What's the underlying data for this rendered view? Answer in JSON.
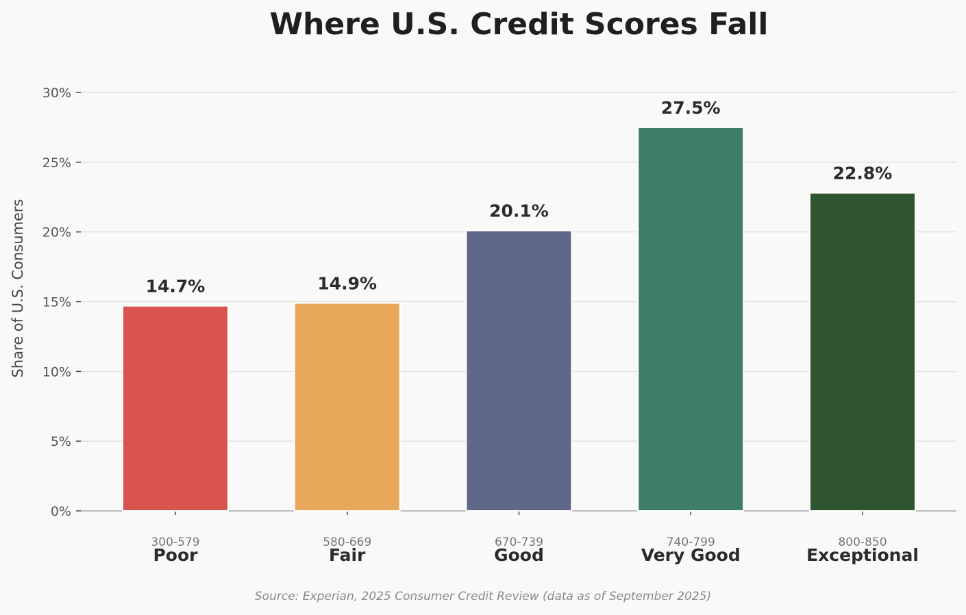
{
  "chart_data": {
    "type": "bar",
    "title": "Where U.S. Credit Scores Fall",
    "xlabel": "",
    "ylabel": "Share of U.S. Consumers",
    "categories": [
      "Poor",
      "Fair",
      "Good",
      "Very Good",
      "Exceptional"
    ],
    "score_ranges": [
      "300-579",
      "580-669",
      "670-739",
      "740-799",
      "800-850"
    ],
    "values": [
      14.7,
      14.9,
      20.1,
      27.5,
      22.8
    ],
    "value_labels": [
      "14.7%",
      "14.9%",
      "20.1%",
      "27.5%",
      "22.8%"
    ],
    "colors": [
      "#d9534f",
      "#e8a85c",
      "#5f6889",
      "#3d7d6a",
      "#2e5430"
    ],
    "ylim": [
      0,
      30
    ],
    "yticks": [
      0,
      5,
      10,
      15,
      20,
      25,
      30
    ],
    "ytick_labels": [
      "0%",
      "5%",
      "10%",
      "15%",
      "20%",
      "25%",
      "30%"
    ],
    "grid": true,
    "source": "Source: Experian, 2025 Consumer Credit Review (data as of September 2025)"
  }
}
